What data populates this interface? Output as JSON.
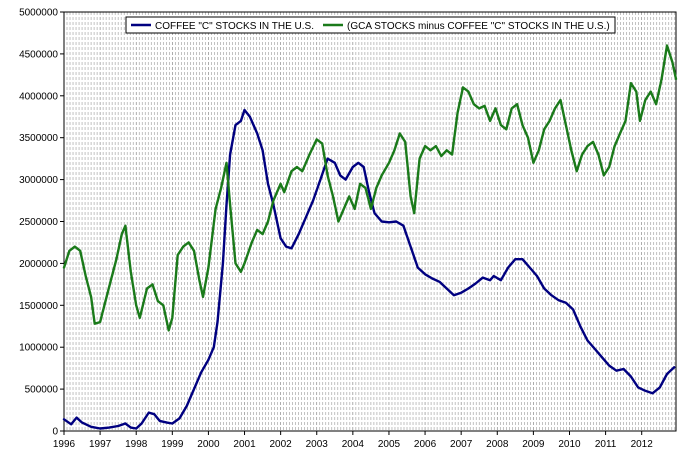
{
  "chart_data": {
    "type": "line",
    "title": "",
    "xlabel": "",
    "ylabel": "",
    "xlim": [
      1996.0,
      2012.95
    ],
    "ylim": [
      0,
      5000000
    ],
    "x_tick_labels": [
      "1996",
      "1997",
      "1998",
      "1999",
      "2000",
      "2001",
      "2002",
      "2003",
      "2004",
      "2005",
      "2006",
      "2007",
      "2008",
      "2009",
      "2010",
      "2011",
      "2012"
    ],
    "y_tick_labels": [
      "0",
      "500000",
      "1000000",
      "1500000",
      "2000000",
      "2500000",
      "3000000",
      "3500000",
      "4000000",
      "4500000",
      "5000000"
    ],
    "grid": "vertical-dashed-monthly",
    "legend_position": "top-center",
    "series": [
      {
        "name": "COFFEE \"C\" STOCKS IN THE U.S.",
        "color": "#000080",
        "points": [
          [
            1996.0,
            140000
          ],
          [
            1996.2,
            80000
          ],
          [
            1996.35,
            160000
          ],
          [
            1996.5,
            100000
          ],
          [
            1996.75,
            50000
          ],
          [
            1997.0,
            30000
          ],
          [
            1997.25,
            40000
          ],
          [
            1997.5,
            60000
          ],
          [
            1997.7,
            90000
          ],
          [
            1997.85,
            40000
          ],
          [
            1998.0,
            30000
          ],
          [
            1998.15,
            90000
          ],
          [
            1998.35,
            220000
          ],
          [
            1998.5,
            200000
          ],
          [
            1998.65,
            120000
          ],
          [
            1998.85,
            100000
          ],
          [
            1999.0,
            90000
          ],
          [
            1999.2,
            150000
          ],
          [
            1999.4,
            300000
          ],
          [
            1999.6,
            500000
          ],
          [
            1999.8,
            700000
          ],
          [
            2000.0,
            850000
          ],
          [
            2000.15,
            1000000
          ],
          [
            2000.25,
            1300000
          ],
          [
            2000.4,
            2000000
          ],
          [
            2000.5,
            2700000
          ],
          [
            2000.6,
            3300000
          ],
          [
            2000.75,
            3650000
          ],
          [
            2000.9,
            3700000
          ],
          [
            2001.0,
            3830000
          ],
          [
            2001.15,
            3750000
          ],
          [
            2001.35,
            3550000
          ],
          [
            2001.5,
            3350000
          ],
          [
            2001.65,
            2950000
          ],
          [
            2001.8,
            2700000
          ],
          [
            2002.0,
            2300000
          ],
          [
            2002.15,
            2200000
          ],
          [
            2002.3,
            2180000
          ],
          [
            2002.5,
            2350000
          ],
          [
            2002.7,
            2550000
          ],
          [
            2002.9,
            2750000
          ],
          [
            2003.1,
            3000000
          ],
          [
            2003.3,
            3250000
          ],
          [
            2003.5,
            3200000
          ],
          [
            2003.65,
            3050000
          ],
          [
            2003.8,
            3000000
          ],
          [
            2004.0,
            3150000
          ],
          [
            2004.15,
            3200000
          ],
          [
            2004.3,
            3150000
          ],
          [
            2004.45,
            2850000
          ],
          [
            2004.6,
            2600000
          ],
          [
            2004.8,
            2500000
          ],
          [
            2005.0,
            2490000
          ],
          [
            2005.2,
            2500000
          ],
          [
            2005.4,
            2450000
          ],
          [
            2005.6,
            2200000
          ],
          [
            2005.8,
            1950000
          ],
          [
            2006.0,
            1870000
          ],
          [
            2006.2,
            1820000
          ],
          [
            2006.4,
            1780000
          ],
          [
            2006.6,
            1700000
          ],
          [
            2006.8,
            1620000
          ],
          [
            2007.0,
            1650000
          ],
          [
            2007.2,
            1700000
          ],
          [
            2007.4,
            1760000
          ],
          [
            2007.6,
            1830000
          ],
          [
            2007.8,
            1800000
          ],
          [
            2007.9,
            1850000
          ],
          [
            2008.1,
            1800000
          ],
          [
            2008.3,
            1950000
          ],
          [
            2008.5,
            2050000
          ],
          [
            2008.7,
            2050000
          ],
          [
            2008.9,
            1950000
          ],
          [
            2009.1,
            1850000
          ],
          [
            2009.3,
            1700000
          ],
          [
            2009.5,
            1620000
          ],
          [
            2009.7,
            1560000
          ],
          [
            2009.9,
            1530000
          ],
          [
            2010.1,
            1450000
          ],
          [
            2010.3,
            1250000
          ],
          [
            2010.5,
            1080000
          ],
          [
            2010.7,
            980000
          ],
          [
            2010.9,
            880000
          ],
          [
            2011.1,
            780000
          ],
          [
            2011.3,
            720000
          ],
          [
            2011.5,
            740000
          ],
          [
            2011.7,
            650000
          ],
          [
            2011.9,
            520000
          ],
          [
            2012.1,
            480000
          ],
          [
            2012.3,
            450000
          ],
          [
            2012.5,
            520000
          ],
          [
            2012.7,
            680000
          ],
          [
            2012.9,
            760000
          ]
        ]
      },
      {
        "name": "(GCA STOCKS minus COFFEE \"C\" STOCKS IN THE U.S.)",
        "color": "#1a7a1a",
        "points": [
          [
            1996.0,
            1950000
          ],
          [
            1996.15,
            2150000
          ],
          [
            1996.3,
            2200000
          ],
          [
            1996.45,
            2150000
          ],
          [
            1996.6,
            1850000
          ],
          [
            1996.75,
            1600000
          ],
          [
            1996.85,
            1280000
          ],
          [
            1997.0,
            1300000
          ],
          [
            1997.15,
            1550000
          ],
          [
            1997.3,
            1800000
          ],
          [
            1997.45,
            2050000
          ],
          [
            1997.6,
            2350000
          ],
          [
            1997.7,
            2450000
          ],
          [
            1997.85,
            1900000
          ],
          [
            1998.0,
            1500000
          ],
          [
            1998.1,
            1350000
          ],
          [
            1998.3,
            1700000
          ],
          [
            1998.45,
            1750000
          ],
          [
            1998.6,
            1550000
          ],
          [
            1998.75,
            1500000
          ],
          [
            1998.9,
            1200000
          ],
          [
            1999.0,
            1350000
          ],
          [
            1999.15,
            2100000
          ],
          [
            1999.3,
            2200000
          ],
          [
            1999.45,
            2250000
          ],
          [
            1999.6,
            2150000
          ],
          [
            1999.75,
            1800000
          ],
          [
            1999.85,
            1600000
          ],
          [
            2000.0,
            1950000
          ],
          [
            2000.2,
            2650000
          ],
          [
            2000.35,
            2900000
          ],
          [
            2000.5,
            3200000
          ],
          [
            2000.6,
            2700000
          ],
          [
            2000.75,
            2000000
          ],
          [
            2000.9,
            1900000
          ],
          [
            2001.0,
            2000000
          ],
          [
            2001.2,
            2250000
          ],
          [
            2001.35,
            2400000
          ],
          [
            2001.5,
            2350000
          ],
          [
            2001.65,
            2500000
          ],
          [
            2001.8,
            2750000
          ],
          [
            2002.0,
            2950000
          ],
          [
            2002.1,
            2850000
          ],
          [
            2002.3,
            3100000
          ],
          [
            2002.45,
            3150000
          ],
          [
            2002.6,
            3100000
          ],
          [
            2002.8,
            3300000
          ],
          [
            2003.0,
            3480000
          ],
          [
            2003.15,
            3430000
          ],
          [
            2003.3,
            3050000
          ],
          [
            2003.45,
            2800000
          ],
          [
            2003.6,
            2500000
          ],
          [
            2003.75,
            2650000
          ],
          [
            2003.9,
            2800000
          ],
          [
            2004.05,
            2650000
          ],
          [
            2004.2,
            2950000
          ],
          [
            2004.35,
            2900000
          ],
          [
            2004.5,
            2650000
          ],
          [
            2004.65,
            2900000
          ],
          [
            2004.8,
            3050000
          ],
          [
            2005.0,
            3200000
          ],
          [
            2005.15,
            3350000
          ],
          [
            2005.3,
            3550000
          ],
          [
            2005.45,
            3450000
          ],
          [
            2005.6,
            2800000
          ],
          [
            2005.7,
            2600000
          ],
          [
            2005.85,
            3250000
          ],
          [
            2006.0,
            3400000
          ],
          [
            2006.15,
            3350000
          ],
          [
            2006.3,
            3400000
          ],
          [
            2006.45,
            3280000
          ],
          [
            2006.6,
            3350000
          ],
          [
            2006.75,
            3300000
          ],
          [
            2006.9,
            3800000
          ],
          [
            2007.05,
            4100000
          ],
          [
            2007.2,
            4050000
          ],
          [
            2007.35,
            3900000
          ],
          [
            2007.5,
            3850000
          ],
          [
            2007.65,
            3880000
          ],
          [
            2007.8,
            3700000
          ],
          [
            2007.95,
            3850000
          ],
          [
            2008.1,
            3650000
          ],
          [
            2008.25,
            3600000
          ],
          [
            2008.4,
            3850000
          ],
          [
            2008.55,
            3900000
          ],
          [
            2008.7,
            3650000
          ],
          [
            2008.85,
            3500000
          ],
          [
            2009.0,
            3200000
          ],
          [
            2009.15,
            3350000
          ],
          [
            2009.3,
            3600000
          ],
          [
            2009.45,
            3700000
          ],
          [
            2009.6,
            3850000
          ],
          [
            2009.75,
            3950000
          ],
          [
            2009.9,
            3650000
          ],
          [
            2010.05,
            3350000
          ],
          [
            2010.2,
            3100000
          ],
          [
            2010.35,
            3300000
          ],
          [
            2010.5,
            3400000
          ],
          [
            2010.65,
            3450000
          ],
          [
            2010.8,
            3300000
          ],
          [
            2010.95,
            3050000
          ],
          [
            2011.1,
            3150000
          ],
          [
            2011.25,
            3400000
          ],
          [
            2011.4,
            3550000
          ],
          [
            2011.55,
            3700000
          ],
          [
            2011.7,
            4150000
          ],
          [
            2011.85,
            4050000
          ],
          [
            2011.95,
            3700000
          ],
          [
            2012.1,
            3950000
          ],
          [
            2012.25,
            4050000
          ],
          [
            2012.4,
            3900000
          ],
          [
            2012.55,
            4200000
          ],
          [
            2012.7,
            4600000
          ],
          [
            2012.85,
            4400000
          ],
          [
            2012.95,
            4200000
          ]
        ]
      }
    ]
  }
}
